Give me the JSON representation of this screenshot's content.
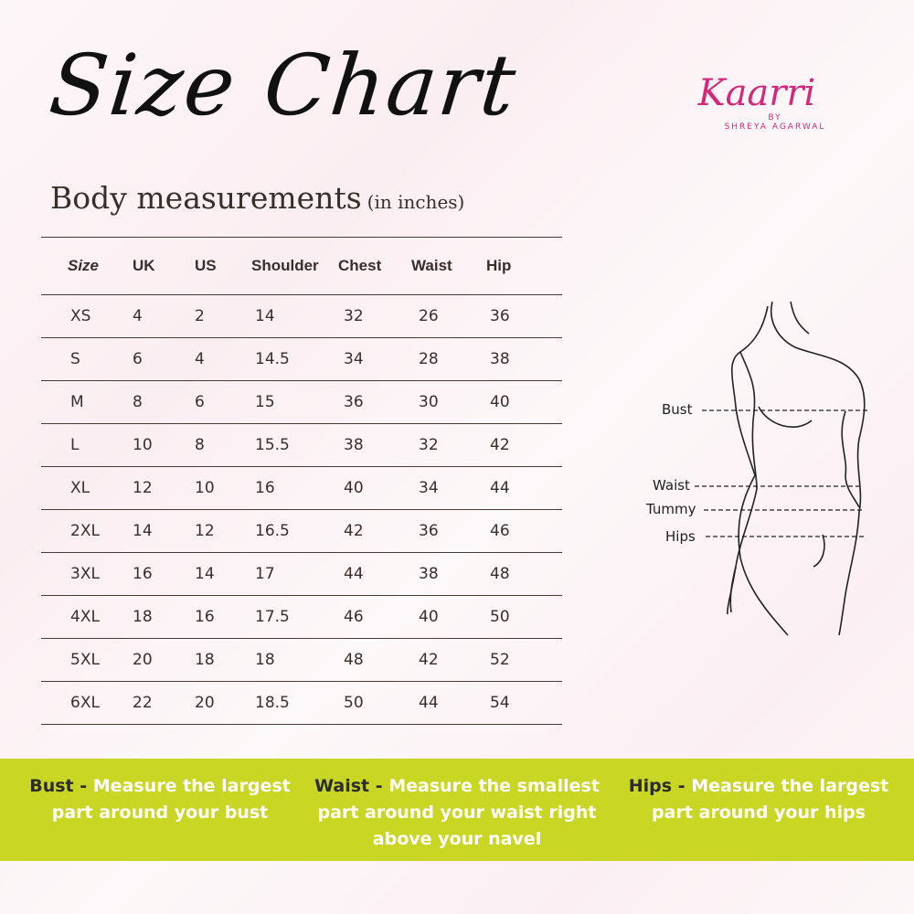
{
  "title": "Size Chart",
  "subtitle": "Body measurements",
  "subtitle_unit": "(in inches)",
  "logo": {
    "brand": "Kaarri",
    "by": "BY",
    "owner": "SHREYA AGARWAL",
    "color": "#d6287a"
  },
  "table": {
    "headers": [
      "Size",
      "UK",
      "US",
      "Shoulder",
      "Chest",
      "Waist",
      "Hip"
    ],
    "rows": [
      [
        "XS",
        "4",
        "2",
        "14",
        "32",
        "26",
        "36"
      ],
      [
        "S",
        "6",
        "4",
        "14.5",
        "34",
        "28",
        "38"
      ],
      [
        "M",
        "8",
        "6",
        "15",
        "36",
        "30",
        "40"
      ],
      [
        "L",
        "10",
        "8",
        "15.5",
        "38",
        "32",
        "42"
      ],
      [
        "XL",
        "12",
        "10",
        "16",
        "40",
        "34",
        "44"
      ],
      [
        "2XL",
        "14",
        "12",
        "16.5",
        "42",
        "36",
        "46"
      ],
      [
        "3XL",
        "16",
        "14",
        "17",
        "44",
        "38",
        "48"
      ],
      [
        "4XL",
        "18",
        "16",
        "17.5",
        "46",
        "40",
        "50"
      ],
      [
        "5XL",
        "20",
        "18",
        "18",
        "48",
        "42",
        "52"
      ],
      [
        "6XL",
        "22",
        "20",
        "18.5",
        "50",
        "44",
        "54"
      ]
    ]
  },
  "figure": {
    "labels": [
      "Bust",
      "Waist",
      "Tummy",
      "Hips"
    ]
  },
  "instructions": [
    {
      "term": "Bust -",
      "text": "Measure the largest part around your bust"
    },
    {
      "term": "Waist -",
      "text": "Measure the smallest part around your waist right above your navel"
    },
    {
      "term": "Hips -",
      "text": "Measure the largest part around your hips"
    }
  ],
  "colors": {
    "band": "#c9d623",
    "text": "#3a2e2b"
  }
}
